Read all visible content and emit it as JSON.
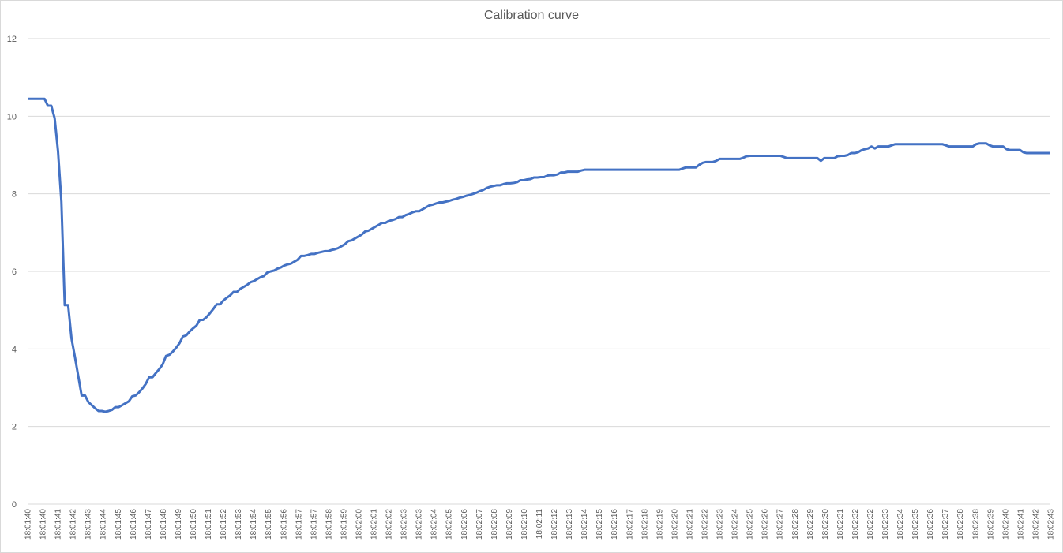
{
  "chart_data": {
    "type": "line",
    "title": "Calibration curve",
    "xlabel": "",
    "ylabel": "",
    "ylim": [
      0,
      12
    ],
    "yticks": [
      0,
      2,
      4,
      6,
      8,
      10,
      12
    ],
    "grid": true,
    "legend": "none",
    "line_color": "#4472C4",
    "x_tick_labels": [
      "18:01:40",
      "18:01:40",
      "18:01:41",
      "18:01:42",
      "18:01:43",
      "18:01:44",
      "18:01:45",
      "18:01:46",
      "18:01:47",
      "18:01:48",
      "18:01:49",
      "18:01:50",
      "18:01:51",
      "18:01:52",
      "18:01:53",
      "18:01:54",
      "18:01:55",
      "18:01:56",
      "18:01:57",
      "18:01:57",
      "18:01:58",
      "18:01:59",
      "18:02:00",
      "18:02:01",
      "18:02:02",
      "18:02:03",
      "18:02:03",
      "18:02:04",
      "18:02:05",
      "18:02:06",
      "18:02:07",
      "18:02:08",
      "18:02:09",
      "18:02:10",
      "18:02:11",
      "18:02:12",
      "18:02:13",
      "18:02:14",
      "18:02:15",
      "18:02:16",
      "18:02:17",
      "18:02:18",
      "18:02:19",
      "18:02:20",
      "18:02:21",
      "18:02:22",
      "18:02:23",
      "18:02:24",
      "18:02:25",
      "18:02:26",
      "18:02:27",
      "18:02:28",
      "18:02:29",
      "18:02:30",
      "18:02:31",
      "18:02:32",
      "18:02:32",
      "18:02:33",
      "18:02:34",
      "18:02:35",
      "18:02:36",
      "18:02:37",
      "18:02:38",
      "18:02:38",
      "18:02:39",
      "18:02:40",
      "18:02:41",
      "18:02:42",
      "18:02:43"
    ],
    "series": [
      {
        "name": "",
        "values": [
          10.45,
          10.45,
          10.45,
          10.45,
          10.45,
          10.45,
          10.27,
          10.27,
          9.95,
          9.1,
          7.8,
          5.13,
          5.13,
          4.27,
          3.8,
          3.3,
          2.8,
          2.8,
          2.63,
          2.55,
          2.47,
          2.4,
          2.4,
          2.38,
          2.4,
          2.43,
          2.5,
          2.5,
          2.55,
          2.6,
          2.65,
          2.78,
          2.8,
          2.88,
          2.98,
          3.1,
          3.27,
          3.27,
          3.38,
          3.48,
          3.6,
          3.82,
          3.85,
          3.93,
          4.03,
          4.15,
          4.32,
          4.35,
          4.45,
          4.53,
          4.6,
          4.75,
          4.75,
          4.82,
          4.92,
          5.03,
          5.15,
          5.15,
          5.25,
          5.32,
          5.38,
          5.47,
          5.47,
          5.55,
          5.6,
          5.65,
          5.72,
          5.75,
          5.8,
          5.85,
          5.88,
          5.97,
          6.0,
          6.02,
          6.07,
          6.1,
          6.15,
          6.18,
          6.2,
          6.25,
          6.3,
          6.4,
          6.4,
          6.42,
          6.45,
          6.45,
          6.48,
          6.5,
          6.52,
          6.52,
          6.55,
          6.57,
          6.6,
          6.65,
          6.7,
          6.78,
          6.8,
          6.85,
          6.9,
          6.95,
          7.03,
          7.05,
          7.1,
          7.15,
          7.2,
          7.25,
          7.25,
          7.3,
          7.32,
          7.35,
          7.4,
          7.4,
          7.45,
          7.48,
          7.52,
          7.55,
          7.55,
          7.6,
          7.65,
          7.7,
          7.72,
          7.75,
          7.78,
          7.78,
          7.8,
          7.82,
          7.85,
          7.87,
          7.9,
          7.92,
          7.95,
          7.97,
          8.0,
          8.03,
          8.07,
          8.1,
          8.15,
          8.18,
          8.2,
          8.22,
          8.22,
          8.25,
          8.27,
          8.27,
          8.28,
          8.3,
          8.35,
          8.35,
          8.37,
          8.38,
          8.42,
          8.42,
          8.43,
          8.43,
          8.47,
          8.48,
          8.48,
          8.5,
          8.55,
          8.55,
          8.57,
          8.57,
          8.57,
          8.57,
          8.6,
          8.62,
          8.62,
          8.62,
          8.62,
          8.62,
          8.62,
          8.62,
          8.62,
          8.62,
          8.62,
          8.62,
          8.62,
          8.62,
          8.62,
          8.62,
          8.62,
          8.62,
          8.62,
          8.62,
          8.62,
          8.62,
          8.62,
          8.62,
          8.62,
          8.62,
          8.62,
          8.62,
          8.62,
          8.62,
          8.65,
          8.68,
          8.68,
          8.68,
          8.68,
          8.75,
          8.8,
          8.82,
          8.82,
          8.82,
          8.85,
          8.9,
          8.9,
          8.9,
          8.9,
          8.9,
          8.9,
          8.9,
          8.93,
          8.97,
          8.98,
          8.98,
          8.98,
          8.98,
          8.98,
          8.98,
          8.98,
          8.98,
          8.98,
          8.98,
          8.95,
          8.92,
          8.92,
          8.92,
          8.92,
          8.92,
          8.92,
          8.92,
          8.92,
          8.92,
          8.92,
          8.85,
          8.92,
          8.92,
          8.92,
          8.92,
          8.97,
          8.98,
          8.98,
          9.0,
          9.05,
          9.05,
          9.07,
          9.12,
          9.15,
          9.17,
          9.22,
          9.17,
          9.22,
          9.22,
          9.22,
          9.22,
          9.25,
          9.28,
          9.28,
          9.28,
          9.28,
          9.28,
          9.28,
          9.28,
          9.28,
          9.28,
          9.28,
          9.28,
          9.28,
          9.28,
          9.28,
          9.28,
          9.25,
          9.22,
          9.22,
          9.22,
          9.22,
          9.22,
          9.22,
          9.22,
          9.22,
          9.28,
          9.3,
          9.3,
          9.3,
          9.25,
          9.22,
          9.22,
          9.22,
          9.22,
          9.15,
          9.13,
          9.13,
          9.13,
          9.13,
          9.07,
          9.05,
          9.05,
          9.05,
          9.05,
          9.05,
          9.05,
          9.05,
          9.05
        ]
      }
    ]
  }
}
